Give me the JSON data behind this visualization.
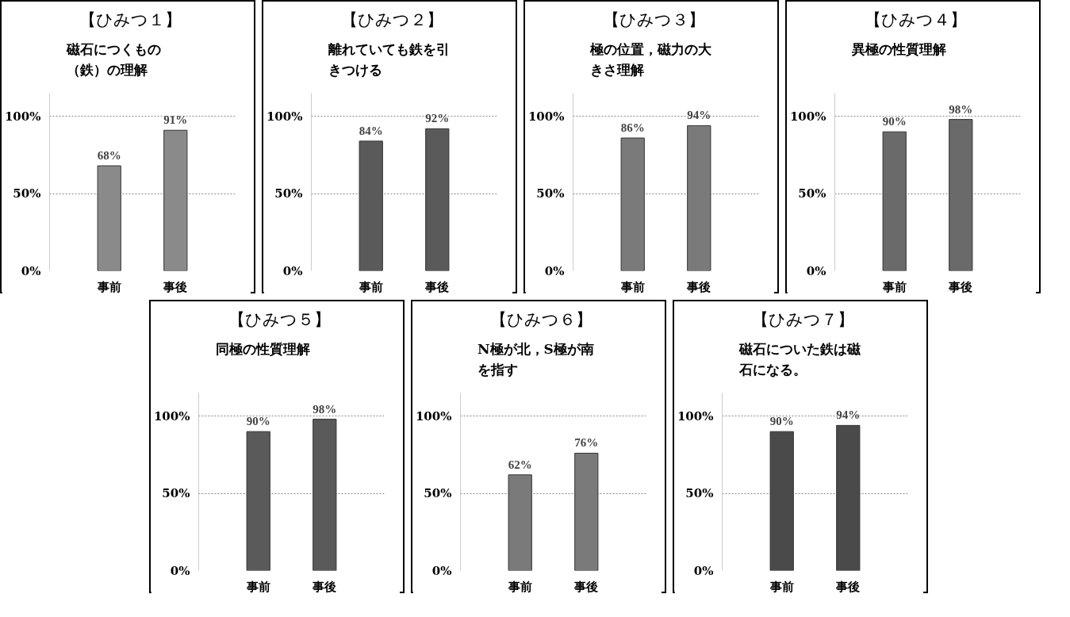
{
  "chart_data": [
    {
      "type": "bar",
      "title": "【ひみつ１】",
      "subtitle": "磁石につくもの（鉄）の理解",
      "categories": [
        "事前",
        "事後"
      ],
      "values": [
        68,
        91
      ],
      "value_labels": [
        "68%",
        "91%"
      ],
      "color": "#8a8a8a",
      "ylim": [
        0,
        115
      ],
      "yticks": [
        {
          "value": 0,
          "label": "0%"
        },
        {
          "value": 50,
          "label": "50%"
        },
        {
          "value": 100,
          "label": "100%"
        }
      ],
      "grid": "y"
    },
    {
      "type": "bar",
      "title": "【ひみつ２】",
      "subtitle": "離れていても鉄を引きつける",
      "categories": [
        "事前",
        "事後"
      ],
      "values": [
        84,
        92
      ],
      "value_labels": [
        "84%",
        "92%"
      ],
      "color": "#5a5a5a",
      "ylim": [
        0,
        115
      ],
      "yticks": [
        {
          "value": 0,
          "label": "0%"
        },
        {
          "value": 50,
          "label": "50%"
        },
        {
          "value": 100,
          "label": "100%"
        }
      ],
      "grid": "y"
    },
    {
      "type": "bar",
      "title": "【ひみつ３】",
      "subtitle": "極の位置，磁力の大きさ理解",
      "categories": [
        "事前",
        "事後"
      ],
      "values": [
        86,
        94
      ],
      "value_labels": [
        "86%",
        "94%"
      ],
      "color": "#7a7a7a",
      "ylim": [
        0,
        115
      ],
      "yticks": [
        {
          "value": 0,
          "label": "0%"
        },
        {
          "value": 50,
          "label": "50%"
        },
        {
          "value": 100,
          "label": "100%"
        }
      ],
      "grid": "y"
    },
    {
      "type": "bar",
      "title": "【ひみつ４】",
      "subtitle": "異極の性質理解",
      "categories": [
        "事前",
        "事後"
      ],
      "values": [
        90,
        98
      ],
      "value_labels": [
        "90%",
        "98%"
      ],
      "color": "#6a6a6a",
      "ylim": [
        0,
        115
      ],
      "yticks": [
        {
          "value": 0,
          "label": "0%"
        },
        {
          "value": 50,
          "label": "50%"
        },
        {
          "value": 100,
          "label": "100%"
        }
      ],
      "grid": "y"
    },
    {
      "type": "bar",
      "title": "【ひみつ５】",
      "subtitle": "同極の性質理解",
      "categories": [
        "事前",
        "事後"
      ],
      "values": [
        90,
        98
      ],
      "value_labels": [
        "90%",
        "98%"
      ],
      "color": "#5a5a5a",
      "ylim": [
        0,
        115
      ],
      "yticks": [
        {
          "value": 0,
          "label": "0%"
        },
        {
          "value": 50,
          "label": "50%"
        },
        {
          "value": 100,
          "label": "100%"
        }
      ],
      "grid": "y"
    },
    {
      "type": "bar",
      "title": "【ひみつ６】",
      "subtitle": "N極が北，S極が南を指す",
      "categories": [
        "事前",
        "事後"
      ],
      "values": [
        62,
        76
      ],
      "value_labels": [
        "62%",
        "76%"
      ],
      "color": "#7a7a7a",
      "ylim": [
        0,
        115
      ],
      "yticks": [
        {
          "value": 0,
          "label": "0%"
        },
        {
          "value": 50,
          "label": "50%"
        },
        {
          "value": 100,
          "label": "100%"
        }
      ],
      "grid": "y"
    },
    {
      "type": "bar",
      "title": "【ひみつ７】",
      "subtitle": "磁石についた鉄は磁石になる。",
      "categories": [
        "事前",
        "事後"
      ],
      "values": [
        90,
        94
      ],
      "value_labels": [
        "90%",
        "94%"
      ],
      "color": "#4a4a4a",
      "ylim": [
        0,
        115
      ],
      "yticks": [
        {
          "value": 0,
          "label": "0%"
        },
        {
          "value": 50,
          "label": "50%"
        },
        {
          "value": 100,
          "label": "100%"
        }
      ],
      "grid": "y"
    }
  ]
}
